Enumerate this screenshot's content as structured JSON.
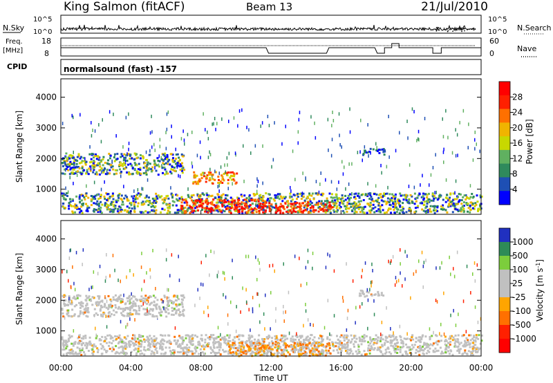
{
  "header": {
    "station": "King Salmon (fitACF)",
    "beam": "Beam 13",
    "date": "21/Jul/2010"
  },
  "side_labels": {
    "nsky": "N.Sky",
    "nsearch": "N.Search",
    "freq_line1": "Freq.",
    "freq_line2": "[MHz]",
    "nave": "Nave",
    "cpid": "CPID",
    "cpid_value": "normalsound (fast) -157"
  },
  "strip_ticks": {
    "noise_left": [
      "10^5",
      "10^0"
    ],
    "noise_right": [
      "10^5",
      "10^0"
    ],
    "freq_left": [
      "18",
      "8"
    ],
    "nave_right": [
      "60",
      "0"
    ]
  },
  "colors": {
    "power_scale": [
      "#0000ff",
      "#1e4fb4",
      "#2f8a5c",
      "#60b060",
      "#c8d800",
      "#f0b400",
      "#ff7000",
      "#ff2000",
      "#ff0000"
    ],
    "velocity_scale": [
      "#2030c0",
      "#2e8b57",
      "#7ccd3c",
      "#c0c0c0",
      "#c0c0c0",
      "#ffa500",
      "#ff7000",
      "#ff2000",
      "#ff0000"
    ]
  },
  "chart_data": [
    {
      "type": "heatmap",
      "panel": "power",
      "xlabel": "",
      "ylabel": "Slant Range [km]",
      "colorbar_label": "Power [dB]",
      "colorbar_ticks": [
        4,
        8,
        12,
        16,
        20,
        24,
        28
      ],
      "colorbar_range": [
        0,
        32
      ],
      "ylim": [
        180,
        4600
      ],
      "yticks": [
        1000,
        2000,
        3000,
        4000
      ],
      "xlim_hours": [
        0,
        24
      ],
      "features": [
        {
          "t0": 0,
          "t1": 24,
          "r0": 250,
          "r1": 900,
          "level": "mixed-low"
        },
        {
          "t0": 6.8,
          "t1": 11.5,
          "r0": 250,
          "r1": 700,
          "level": "high"
        },
        {
          "t0": 11.5,
          "t1": 15.5,
          "r0": 250,
          "r1": 600,
          "level": "high"
        },
        {
          "t0": 7.5,
          "t1": 10.0,
          "r0": 1200,
          "r1": 1600,
          "level": "mid-high"
        },
        {
          "t0": 0.0,
          "t1": 7.0,
          "r0": 1500,
          "r1": 2200,
          "level": "mixed-low"
        },
        {
          "t0": 17.0,
          "t1": 18.5,
          "r0": 2150,
          "r1": 2350,
          "level": "low"
        }
      ]
    },
    {
      "type": "heatmap",
      "panel": "velocity",
      "xlabel": "Time UT",
      "ylabel": "Slant Range [km]",
      "colorbar_label": "Velocity [m s^-1]",
      "colorbar_ticks": [
        1000,
        500,
        100,
        25,
        -25,
        -100,
        -500,
        -1000
      ],
      "ylim": [
        180,
        4600
      ],
      "yticks": [
        1000,
        2000,
        3000,
        4000
      ],
      "xlim_hours": [
        0,
        24
      ],
      "xticks": [
        "00:00",
        "04:00",
        "08:00",
        "12:00",
        "16:00",
        "20:00",
        "00:00"
      ],
      "features": [
        {
          "t0": 0,
          "t1": 24,
          "r0": 250,
          "r1": 900,
          "level": "near-zero"
        },
        {
          "t0": 9.5,
          "t1": 15.5,
          "r0": 200,
          "r1": 650,
          "level": "negative"
        },
        {
          "t0": 0.0,
          "t1": 7.0,
          "r0": 1500,
          "r1": 2200,
          "level": "near-zero"
        },
        {
          "t0": 17.0,
          "t1": 18.5,
          "r0": 2150,
          "r1": 2350,
          "level": "near-zero"
        }
      ]
    }
  ]
}
